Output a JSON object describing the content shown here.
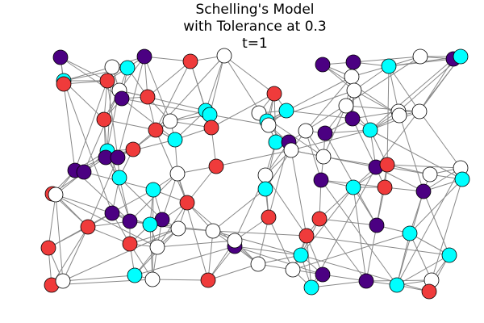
{
  "title": [
    "Schelling's Model",
    "with Tolerance at 0.3",
    "t=1"
  ],
  "nodes": [
    {
      "color": "#4b0082"
    },
    {
      "color": "#ffffff"
    },
    {
      "color": "#4b0082"
    },
    {
      "color": "#ef3b3b"
    },
    {
      "color": "#ffffff"
    },
    {
      "color": "#00ffff"
    },
    {
      "color": "#ef3b3b"
    },
    {
      "color": "#ef3b3b"
    },
    {
      "color": "#00ffff"
    },
    {
      "color": "#ffffff"
    },
    {
      "color": "#4b0082"
    },
    {
      "color": "#ef3b3b"
    },
    {
      "color": "#4b0082"
    },
    {
      "color": "#4b0082"
    },
    {
      "color": "#00ffff"
    },
    {
      "color": "#ffffff"
    },
    {
      "color": "#4b0082"
    },
    {
      "color": "#00ffff"
    },
    {
      "color": "#ffffff"
    },
    {
      "color": "#ef3b3b"
    },
    {
      "color": "#00ffff"
    },
    {
      "color": "#00ffff"
    },
    {
      "color": "#ffffff"
    },
    {
      "color": "#00ffff"
    },
    {
      "color": "#00ffff"
    },
    {
      "color": "#ffffff"
    },
    {
      "color": "#ef3b3b"
    },
    {
      "color": "#ffffff"
    },
    {
      "color": "#ef3b3b"
    },
    {
      "color": "#ef3b3b"
    },
    {
      "color": "#ffffff"
    },
    {
      "color": "#4b0082"
    },
    {
      "color": "#ffffff"
    },
    {
      "color": "#ffffff"
    },
    {
      "color": "#4b0082"
    },
    {
      "color": "#ffffff"
    },
    {
      "color": "#ffffff"
    },
    {
      "color": "#ffffff"
    },
    {
      "color": "#00ffff"
    },
    {
      "color": "#00ffff"
    },
    {
      "color": "#4b0082"
    },
    {
      "color": "#ffffff"
    },
    {
      "color": "#00ffff"
    },
    {
      "color": "#00ffff"
    },
    {
      "color": "#ef3b3b"
    },
    {
      "color": "#4b0082"
    },
    {
      "color": "#4b0082"
    },
    {
      "color": "#4b0082"
    },
    {
      "color": "#4b0082"
    },
    {
      "color": "#00ffff"
    },
    {
      "color": "#ffffff"
    },
    {
      "color": "#ef3b3b"
    },
    {
      "color": "#ffffff"
    },
    {
      "color": "#ffffff"
    },
    {
      "color": "#4b0082"
    },
    {
      "color": "#00ffff"
    },
    {
      "color": "#4b0082"
    },
    {
      "color": "#ef3b3b"
    },
    {
      "color": "#ffffff"
    },
    {
      "color": "#ffffff"
    },
    {
      "color": "#00ffff"
    },
    {
      "color": "#00ffff"
    },
    {
      "color": "#ef3b3b"
    },
    {
      "color": "#4b0082"
    },
    {
      "color": "#ef3b3b"
    },
    {
      "color": "#ffffff"
    },
    {
      "color": "#00ffff"
    },
    {
      "color": "#ef3b3b"
    },
    {
      "color": "#4b0082"
    },
    {
      "color": "#4b0082"
    },
    {
      "color": "#4b0082"
    },
    {
      "color": "#ef3b3b"
    },
    {
      "color": "#00ffff"
    },
    {
      "color": "#ffffff"
    },
    {
      "color": "#ffffff"
    },
    {
      "color": "#ef3b3b"
    },
    {
      "color": "#ef3b3b"
    },
    {
      "color": "#4b0082"
    },
    {
      "color": "#00ffff"
    },
    {
      "color": "#ef3b3b"
    },
    {
      "color": "#ef3b3b"
    },
    {
      "color": "#ffffff"
    },
    {
      "color": "#4b0082"
    },
    {
      "color": "#ffffff"
    },
    {
      "color": "#ef3b3b"
    },
    {
      "color": "#00ffff"
    },
    {
      "color": "#ffffff"
    },
    {
      "color": "#ffffff"
    },
    {
      "color": "#4b0082"
    },
    {
      "color": "#00ffff"
    },
    {
      "color": "#00ffff"
    },
    {
      "color": "#ffffff"
    },
    {
      "color": "#ef3b3b"
    },
    {
      "color": "#ef3b3b"
    },
    {
      "color": "#ffffff"
    },
    {
      "color": "#00ffff"
    },
    {
      "color": "#4b0082"
    },
    {
      "color": "#00ffff"
    },
    {
      "color": "#ffffff"
    },
    {
      "color": "#ef3b3b"
    }
  ]
}
